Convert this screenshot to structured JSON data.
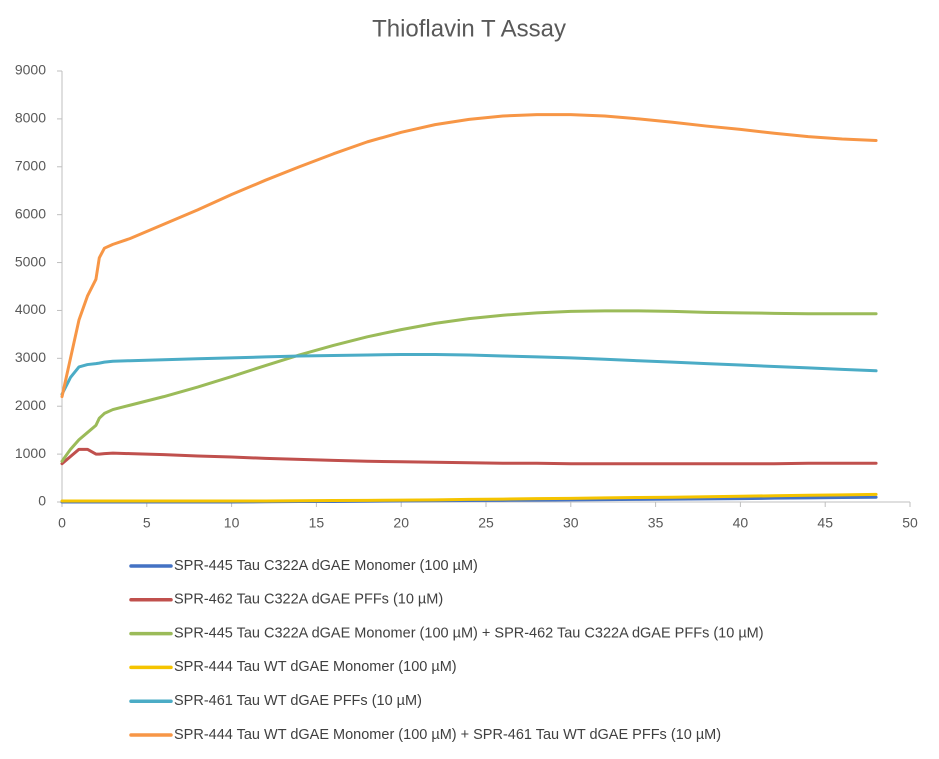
{
  "chart_data": {
    "type": "line",
    "title": "Thioflavin T Assay",
    "x": [
      0,
      0.5,
      1,
      1.5,
      2,
      2.2,
      2.5,
      3,
      4,
      6,
      8,
      10,
      12,
      14,
      16,
      18,
      20,
      22,
      24,
      26,
      28,
      30,
      32,
      34,
      36,
      38,
      40,
      42,
      44,
      46,
      48
    ],
    "series": [
      {
        "name": "SPR-445 Tau C322A dGAE Monomer (100 µM)",
        "color": "#4472c4",
        "values": [
          0,
          0,
          0,
          0,
          0,
          0,
          0,
          0,
          0,
          0,
          0,
          0,
          5,
          10,
          10,
          15,
          20,
          25,
          30,
          35,
          40,
          45,
          50,
          55,
          60,
          65,
          70,
          80,
          85,
          95,
          100
        ]
      },
      {
        "name": "SPR-462 Tau C322A dGAE PFFs (10 µM)",
        "color": "#c0504d",
        "values": [
          800,
          950,
          1100,
          1100,
          1000,
          1000,
          1010,
          1020,
          1010,
          990,
          960,
          940,
          910,
          890,
          870,
          850,
          840,
          830,
          820,
          810,
          810,
          800,
          800,
          800,
          800,
          800,
          800,
          800,
          810,
          810,
          810
        ]
      },
      {
        "name": "SPR-445 Tau C322A dGAE Monomer (100 µM) + SPR-462 Tau C322A dGAE PFFs (10 µM)",
        "color": "#9bbb59",
        "values": [
          850,
          1100,
          1300,
          1450,
          1600,
          1750,
          1850,
          1930,
          2020,
          2200,
          2400,
          2620,
          2850,
          3070,
          3270,
          3450,
          3600,
          3730,
          3830,
          3900,
          3950,
          3980,
          3990,
          3990,
          3980,
          3960,
          3950,
          3940,
          3930,
          3930,
          3930
        ]
      },
      {
        "name": "SPR-444 Tau WT dGAE Monomer (100 µM)",
        "color": "#f5c400",
        "values": [
          20,
          20,
          20,
          20,
          20,
          20,
          20,
          20,
          20,
          20,
          20,
          20,
          20,
          25,
          30,
          35,
          40,
          45,
          55,
          60,
          70,
          75,
          85,
          95,
          100,
          110,
          120,
          130,
          140,
          150,
          160
        ]
      },
      {
        "name": "SPR-461 Tau WT dGAE PFFs (10 µM)",
        "color": "#4bacc6",
        "values": [
          2250,
          2600,
          2820,
          2870,
          2890,
          2900,
          2920,
          2940,
          2950,
          2970,
          2990,
          3010,
          3030,
          3050,
          3060,
          3070,
          3080,
          3080,
          3070,
          3050,
          3030,
          3010,
          2980,
          2950,
          2920,
          2890,
          2860,
          2830,
          2800,
          2770,
          2740
        ]
      },
      {
        "name": "SPR-444 Tau WT dGAE Monomer (100 µM) + SPR-461 Tau WT dGAE PFFs (10 µM)",
        "color": "#f79646",
        "values": [
          2200,
          3000,
          3800,
          4300,
          4650,
          5100,
          5300,
          5380,
          5500,
          5800,
          6100,
          6420,
          6720,
          7000,
          7270,
          7520,
          7720,
          7880,
          7990,
          8060,
          8090,
          8090,
          8060,
          8000,
          7930,
          7850,
          7780,
          7700,
          7630,
          7580,
          7550
        ]
      }
    ],
    "xlim": [
      0,
      50
    ],
    "xticks": [
      0,
      5,
      10,
      15,
      20,
      25,
      30,
      35,
      40,
      45,
      50
    ],
    "ylim": [
      0,
      9000
    ],
    "yticks": [
      0,
      1000,
      2000,
      3000,
      4000,
      5000,
      6000,
      7000,
      8000,
      9000
    ],
    "grid": false,
    "legend": "bottom"
  }
}
